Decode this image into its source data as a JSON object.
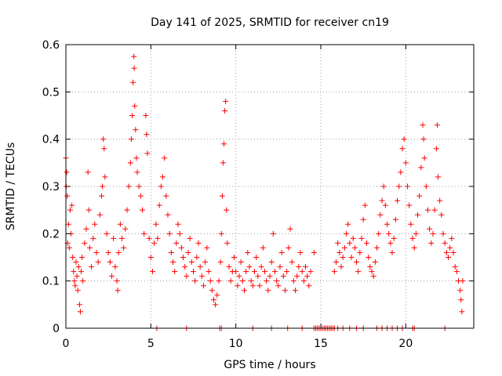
{
  "chart_data": {
    "type": "scatter",
    "title": "Day 141 of 2025, SRMTID for receiver cn19",
    "xlabel": "GPS time / hours",
    "ylabel": "SRMTID / TECUs",
    "xlim": [
      0,
      24
    ],
    "ylim": [
      0,
      0.6
    ],
    "xticks": [
      0,
      5,
      10,
      15,
      20
    ],
    "xtick_labels": [
      "0",
      "5",
      "10",
      "15",
      "20"
    ],
    "yticks": [
      0,
      0.1,
      0.2,
      0.3,
      0.4,
      0.5,
      0.6
    ],
    "ytick_labels": [
      "0",
      "0.1",
      "0.2",
      "0.3",
      "0.4",
      "0.5",
      "0.6"
    ],
    "grid": true,
    "marker": "+",
    "color": "#ff0000",
    "series": [
      {
        "name": "SRMTID",
        "points": [
          [
            0.0,
            0.36
          ],
          [
            0.02,
            0.3
          ],
          [
            0.05,
            0.33
          ],
          [
            0.08,
            0.28
          ],
          [
            0.1,
            0.18
          ],
          [
            0.15,
            0.22
          ],
          [
            0.2,
            0.17
          ],
          [
            0.25,
            0.25
          ],
          [
            0.3,
            0.2
          ],
          [
            0.35,
            0.26
          ],
          [
            0.4,
            0.15
          ],
          [
            0.45,
            0.12
          ],
          [
            0.5,
            0.1
          ],
          [
            0.55,
            0.09
          ],
          [
            0.6,
            0.14
          ],
          [
            0.65,
            0.11
          ],
          [
            0.7,
            0.08
          ],
          [
            0.75,
            0.13
          ],
          [
            0.8,
            0.05
          ],
          [
            0.85,
            0.035
          ],
          [
            0.9,
            0.12
          ],
          [
            0.95,
            0.15
          ],
          [
            1.0,
            0.1
          ],
          [
            1.1,
            0.18
          ],
          [
            1.2,
            0.21
          ],
          [
            1.3,
            0.33
          ],
          [
            1.35,
            0.25
          ],
          [
            1.4,
            0.17
          ],
          [
            1.5,
            0.13
          ],
          [
            1.6,
            0.19
          ],
          [
            1.7,
            0.22
          ],
          [
            1.8,
            0.16
          ],
          [
            1.9,
            0.14
          ],
          [
            2.0,
            0.24
          ],
          [
            2.1,
            0.28
          ],
          [
            2.15,
            0.3
          ],
          [
            2.2,
            0.4
          ],
          [
            2.25,
            0.38
          ],
          [
            2.3,
            0.32
          ],
          [
            2.4,
            0.2
          ],
          [
            2.5,
            0.16
          ],
          [
            2.6,
            0.14
          ],
          [
            2.7,
            0.11
          ],
          [
            2.8,
            0.19
          ],
          [
            2.9,
            0.13
          ],
          [
            3.0,
            0.1
          ],
          [
            3.05,
            0.08
          ],
          [
            3.1,
            0.16
          ],
          [
            3.2,
            0.22
          ],
          [
            3.3,
            0.19
          ],
          [
            3.4,
            0.17
          ],
          [
            3.5,
            0.21
          ],
          [
            3.6,
            0.25
          ],
          [
            3.7,
            0.3
          ],
          [
            3.8,
            0.35
          ],
          [
            3.85,
            0.4
          ],
          [
            3.9,
            0.45
          ],
          [
            3.95,
            0.52
          ],
          [
            4.0,
            0.575
          ],
          [
            4.02,
            0.55
          ],
          [
            4.05,
            0.47
          ],
          [
            4.1,
            0.42
          ],
          [
            4.15,
            0.36
          ],
          [
            4.2,
            0.33
          ],
          [
            4.3,
            0.3
          ],
          [
            4.4,
            0.28
          ],
          [
            4.5,
            0.25
          ],
          [
            4.6,
            0.2
          ],
          [
            4.7,
            0.45
          ],
          [
            4.75,
            0.41
          ],
          [
            4.8,
            0.37
          ],
          [
            4.9,
            0.19
          ],
          [
            5.0,
            0.15
          ],
          [
            5.1,
            0.12
          ],
          [
            5.2,
            0.18
          ],
          [
            5.3,
            0.22
          ],
          [
            5.4,
            0.19
          ],
          [
            5.5,
            0.26
          ],
          [
            5.6,
            0.3
          ],
          [
            5.7,
            0.32
          ],
          [
            5.8,
            0.36
          ],
          [
            5.9,
            0.28
          ],
          [
            6.0,
            0.24
          ],
          [
            6.1,
            0.2
          ],
          [
            6.2,
            0.16
          ],
          [
            6.3,
            0.14
          ],
          [
            6.4,
            0.12
          ],
          [
            6.5,
            0.18
          ],
          [
            6.6,
            0.22
          ],
          [
            6.7,
            0.2
          ],
          [
            6.8,
            0.17
          ],
          [
            6.9,
            0.15
          ],
          [
            7.0,
            0.13
          ],
          [
            7.1,
            0.11
          ],
          [
            7.2,
            0.16
          ],
          [
            7.3,
            0.19
          ],
          [
            7.4,
            0.14
          ],
          [
            7.5,
            0.12
          ],
          [
            7.6,
            0.1
          ],
          [
            7.7,
            0.15
          ],
          [
            7.8,
            0.18
          ],
          [
            7.9,
            0.13
          ],
          [
            8.0,
            0.11
          ],
          [
            8.1,
            0.09
          ],
          [
            8.2,
            0.14
          ],
          [
            8.3,
            0.17
          ],
          [
            8.4,
            0.12
          ],
          [
            8.5,
            0.1
          ],
          [
            8.6,
            0.08
          ],
          [
            8.7,
            0.06
          ],
          [
            8.8,
            0.05
          ],
          [
            8.9,
            0.07
          ],
          [
            9.0,
            0.1
          ],
          [
            9.1,
            0.14
          ],
          [
            9.15,
            0.2
          ],
          [
            9.2,
            0.28
          ],
          [
            9.25,
            0.35
          ],
          [
            9.3,
            0.39
          ],
          [
            9.35,
            0.46
          ],
          [
            9.4,
            0.48
          ],
          [
            9.45,
            0.25
          ],
          [
            9.5,
            0.18
          ],
          [
            9.6,
            0.13
          ],
          [
            9.7,
            0.1
          ],
          [
            9.8,
            0.12
          ],
          [
            9.9,
            0.15
          ],
          [
            10.0,
            0.12
          ],
          [
            10.1,
            0.09
          ],
          [
            10.2,
            0.11
          ],
          [
            10.3,
            0.14
          ],
          [
            10.4,
            0.1
          ],
          [
            10.5,
            0.08
          ],
          [
            10.6,
            0.12
          ],
          [
            10.7,
            0.16
          ],
          [
            10.8,
            0.13
          ],
          [
            10.9,
            0.1
          ],
          [
            11.0,
            0.09
          ],
          [
            11.1,
            0.12
          ],
          [
            11.2,
            0.15
          ],
          [
            11.3,
            0.11
          ],
          [
            11.4,
            0.09
          ],
          [
            11.5,
            0.13
          ],
          [
            11.6,
            0.17
          ],
          [
            11.7,
            0.12
          ],
          [
            11.8,
            0.1
          ],
          [
            11.9,
            0.08
          ],
          [
            12.0,
            0.11
          ],
          [
            12.1,
            0.14
          ],
          [
            12.2,
            0.2
          ],
          [
            12.3,
            0.12
          ],
          [
            12.4,
            0.1
          ],
          [
            12.5,
            0.09
          ],
          [
            12.6,
            0.13
          ],
          [
            12.7,
            0.16
          ],
          [
            12.8,
            0.11
          ],
          [
            12.9,
            0.08
          ],
          [
            13.0,
            0.12
          ],
          [
            13.1,
            0.17
          ],
          [
            13.2,
            0.21
          ],
          [
            13.3,
            0.14
          ],
          [
            13.4,
            0.1
          ],
          [
            13.5,
            0.08
          ],
          [
            13.6,
            0.11
          ],
          [
            13.7,
            0.13
          ],
          [
            13.8,
            0.16
          ],
          [
            13.9,
            0.12
          ],
          [
            14.0,
            0.1
          ],
          [
            14.1,
            0.13
          ],
          [
            14.2,
            0.11
          ],
          [
            14.3,
            0.09
          ],
          [
            14.4,
            0.12
          ],
          [
            14.6,
            0.16
          ],
          [
            15.8,
            0.12
          ],
          [
            15.9,
            0.14
          ],
          [
            16.0,
            0.18
          ],
          [
            16.1,
            0.16
          ],
          [
            16.2,
            0.13
          ],
          [
            16.3,
            0.15
          ],
          [
            16.4,
            0.17
          ],
          [
            16.5,
            0.2
          ],
          [
            16.6,
            0.22
          ],
          [
            16.7,
            0.18
          ],
          [
            16.8,
            0.15
          ],
          [
            16.9,
            0.19
          ],
          [
            17.0,
            0.17
          ],
          [
            17.1,
            0.14
          ],
          [
            17.2,
            0.12
          ],
          [
            17.3,
            0.16
          ],
          [
            17.4,
            0.19
          ],
          [
            17.5,
            0.23
          ],
          [
            17.6,
            0.26
          ],
          [
            17.7,
            0.18
          ],
          [
            17.8,
            0.15
          ],
          [
            17.9,
            0.13
          ],
          [
            18.0,
            0.12
          ],
          [
            18.1,
            0.11
          ],
          [
            18.2,
            0.14
          ],
          [
            18.3,
            0.17
          ],
          [
            18.4,
            0.2
          ],
          [
            18.5,
            0.24
          ],
          [
            18.6,
            0.27
          ],
          [
            18.7,
            0.3
          ],
          [
            18.8,
            0.26
          ],
          [
            18.9,
            0.22
          ],
          [
            19.0,
            0.2
          ],
          [
            19.1,
            0.18
          ],
          [
            19.2,
            0.16
          ],
          [
            19.3,
            0.19
          ],
          [
            19.4,
            0.23
          ],
          [
            19.5,
            0.27
          ],
          [
            19.6,
            0.3
          ],
          [
            19.7,
            0.33
          ],
          [
            19.8,
            0.38
          ],
          [
            19.9,
            0.4
          ],
          [
            20.0,
            0.35
          ],
          [
            20.1,
            0.3
          ],
          [
            20.2,
            0.26
          ],
          [
            20.3,
            0.22
          ],
          [
            20.4,
            0.19
          ],
          [
            20.5,
            0.17
          ],
          [
            20.6,
            0.2
          ],
          [
            20.7,
            0.24
          ],
          [
            20.8,
            0.28
          ],
          [
            20.9,
            0.34
          ],
          [
            21.0,
            0.43
          ],
          [
            21.05,
            0.4
          ],
          [
            21.1,
            0.36
          ],
          [
            21.2,
            0.3
          ],
          [
            21.3,
            0.25
          ],
          [
            21.4,
            0.21
          ],
          [
            21.5,
            0.18
          ],
          [
            21.6,
            0.2
          ],
          [
            21.7,
            0.25
          ],
          [
            21.8,
            0.38
          ],
          [
            21.85,
            0.43
          ],
          [
            21.9,
            0.32
          ],
          [
            22.0,
            0.27
          ],
          [
            22.1,
            0.24
          ],
          [
            22.2,
            0.2
          ],
          [
            22.3,
            0.18
          ],
          [
            22.4,
            0.16
          ],
          [
            22.5,
            0.15
          ],
          [
            22.6,
            0.17
          ],
          [
            22.7,
            0.19
          ],
          [
            22.8,
            0.16
          ],
          [
            22.9,
            0.13
          ],
          [
            23.0,
            0.12
          ],
          [
            23.1,
            0.1
          ],
          [
            23.2,
            0.08
          ],
          [
            23.25,
            0.06
          ],
          [
            23.3,
            0.035
          ],
          [
            23.35,
            0.1
          ]
        ],
        "zero_x": [
          5.35,
          7.1,
          9.05,
          9.15,
          11.0,
          12.1,
          13.05,
          13.9,
          14.6,
          14.7,
          14.8,
          14.9,
          15.0,
          15.1,
          15.2,
          15.3,
          15.4,
          15.5,
          15.6,
          15.7,
          15.8,
          16.0,
          16.3,
          16.7,
          17.1,
          17.5,
          18.3,
          18.6,
          18.9,
          19.2,
          19.5,
          19.8,
          20.4,
          20.5,
          22.3
        ]
      }
    ]
  }
}
